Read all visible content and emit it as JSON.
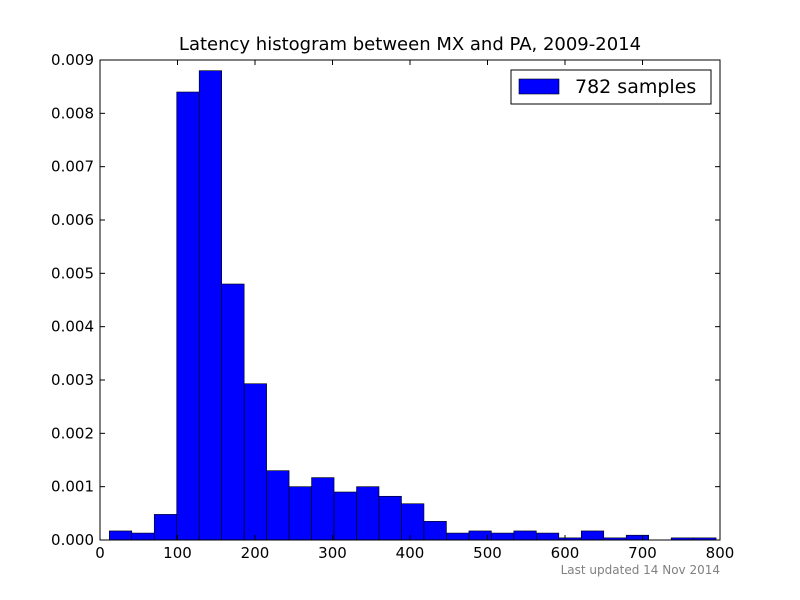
{
  "chart_data": {
    "type": "bar",
    "title": "Latency histogram between MX and PA, 2009-2014",
    "xlabel": "",
    "ylabel": "",
    "xlim": [
      0,
      800
    ],
    "ylim": [
      0,
      0.009
    ],
    "xticks": [
      "0",
      "100",
      "200",
      "300",
      "400",
      "500",
      "600",
      "700",
      "800"
    ],
    "yticks": [
      "0.000",
      "0.001",
      "0.002",
      "0.003",
      "0.004",
      "0.005",
      "0.006",
      "0.007",
      "0.008",
      "0.009"
    ],
    "grid": false,
    "legend_position": "top-right",
    "bar_color": "#0000ff",
    "series": [
      {
        "name": "782 samples",
        "bins": [
          {
            "x0": 12,
            "x1": 41,
            "value": 0.00017
          },
          {
            "x0": 41,
            "x1": 70,
            "value": 0.00013
          },
          {
            "x0": 70,
            "x1": 99,
            "value": 0.00048
          },
          {
            "x0": 99,
            "x1": 128,
            "value": 0.0084
          },
          {
            "x0": 128,
            "x1": 157,
            "value": 0.0088
          },
          {
            "x0": 157,
            "x1": 186,
            "value": 0.0048
          },
          {
            "x0": 186,
            "x1": 215,
            "value": 0.00293
          },
          {
            "x0": 215,
            "x1": 244,
            "value": 0.0013
          },
          {
            "x0": 244,
            "x1": 273,
            "value": 0.001
          },
          {
            "x0": 273,
            "x1": 302,
            "value": 0.00117
          },
          {
            "x0": 302,
            "x1": 331,
            "value": 0.0009
          },
          {
            "x0": 331,
            "x1": 360,
            "value": 0.001
          },
          {
            "x0": 360,
            "x1": 389,
            "value": 0.00082
          },
          {
            "x0": 389,
            "x1": 418,
            "value": 0.00068
          },
          {
            "x0": 418,
            "x1": 447,
            "value": 0.00035
          },
          {
            "x0": 447,
            "x1": 476,
            "value": 0.00013
          },
          {
            "x0": 476,
            "x1": 505,
            "value": 0.00017
          },
          {
            "x0": 505,
            "x1": 534,
            "value": 0.00013
          },
          {
            "x0": 534,
            "x1": 563,
            "value": 0.00017
          },
          {
            "x0": 563,
            "x1": 592,
            "value": 0.00013
          },
          {
            "x0": 592,
            "x1": 621,
            "value": 4e-05
          },
          {
            "x0": 621,
            "x1": 650,
            "value": 0.00017
          },
          {
            "x0": 650,
            "x1": 679,
            "value": 4e-05
          },
          {
            "x0": 679,
            "x1": 708,
            "value": 9e-05
          },
          {
            "x0": 708,
            "x1": 737,
            "value": 0
          },
          {
            "x0": 737,
            "x1": 766,
            "value": 4e-05
          },
          {
            "x0": 766,
            "x1": 795,
            "value": 4e-05
          }
        ]
      }
    ]
  },
  "footer_text": "Last updated 14 Nov 2014"
}
